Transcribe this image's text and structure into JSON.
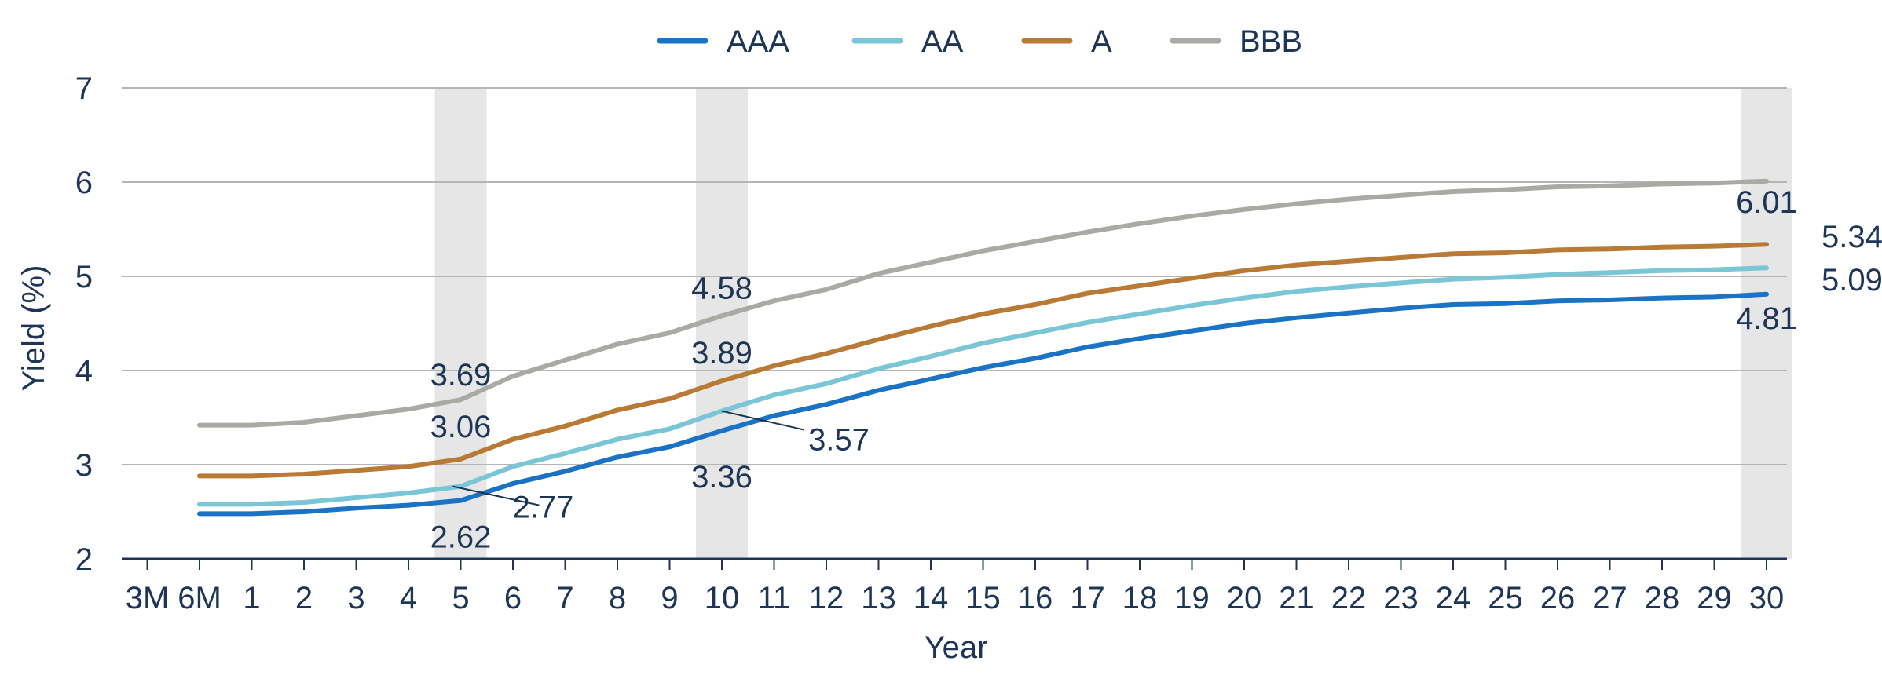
{
  "chart_data": {
    "type": "line",
    "title": "",
    "xlabel": "Year",
    "ylabel": "Yield (%)",
    "ylim": [
      2,
      7
    ],
    "yticks": [
      "2",
      "3",
      "4",
      "5",
      "6",
      "7"
    ],
    "categories": [
      "3M",
      "6M",
      "1",
      "2",
      "3",
      "4",
      "5",
      "6",
      "7",
      "8",
      "9",
      "10",
      "11",
      "12",
      "13",
      "14",
      "15",
      "16",
      "17",
      "18",
      "19",
      "20",
      "21",
      "22",
      "23",
      "24",
      "25",
      "26",
      "27",
      "28",
      "29",
      "30"
    ],
    "grid": true,
    "legend_position": "top-center",
    "highlighted_categories": [
      "5",
      "10",
      "30"
    ],
    "series": [
      {
        "name": "AAA",
        "color": "#1a73c4",
        "values": [
          null,
          2.48,
          2.48,
          2.5,
          2.54,
          2.57,
          2.62,
          2.8,
          2.93,
          3.08,
          3.19,
          3.36,
          3.52,
          3.64,
          3.79,
          3.91,
          4.03,
          4.13,
          4.25,
          4.34,
          4.42,
          4.5,
          4.56,
          4.61,
          4.66,
          4.7,
          4.71,
          4.74,
          4.75,
          4.77,
          4.78,
          4.81
        ]
      },
      {
        "name": "AA",
        "color": "#7ac6d6",
        "values": [
          null,
          2.58,
          2.58,
          2.6,
          2.65,
          2.7,
          2.77,
          2.98,
          3.12,
          3.27,
          3.38,
          3.57,
          3.74,
          3.86,
          4.02,
          4.15,
          4.29,
          4.4,
          4.51,
          4.6,
          4.69,
          4.77,
          4.84,
          4.89,
          4.93,
          4.97,
          4.99,
          5.02,
          5.04,
          5.06,
          5.07,
          5.09
        ]
      },
      {
        "name": "A",
        "color": "#b87a34",
        "values": [
          null,
          2.88,
          2.88,
          2.9,
          2.94,
          2.98,
          3.06,
          3.27,
          3.41,
          3.58,
          3.7,
          3.89,
          4.05,
          4.18,
          4.33,
          4.47,
          4.6,
          4.7,
          4.82,
          4.9,
          4.98,
          5.06,
          5.12,
          5.16,
          5.2,
          5.24,
          5.25,
          5.28,
          5.29,
          5.31,
          5.32,
          5.34
        ]
      },
      {
        "name": "BBB",
        "color": "#aaaaa5",
        "values": [
          null,
          3.42,
          3.42,
          3.45,
          3.52,
          3.59,
          3.69,
          3.94,
          4.11,
          4.28,
          4.4,
          4.58,
          4.74,
          4.86,
          5.03,
          5.15,
          5.27,
          5.37,
          5.47,
          5.56,
          5.64,
          5.71,
          5.77,
          5.82,
          5.86,
          5.9,
          5.92,
          5.95,
          5.96,
          5.98,
          5.99,
          6.01
        ]
      }
    ],
    "data_labels": [
      {
        "text": "3.69"
      },
      {
        "text": "3.06"
      },
      {
        "text": "2.77"
      },
      {
        "text": "2.62"
      },
      {
        "text": "4.58"
      },
      {
        "text": "3.89"
      },
      {
        "text": "3.57"
      },
      {
        "text": "3.36"
      },
      {
        "text": "6.01"
      },
      {
        "text": "5.34"
      },
      {
        "text": "5.09"
      },
      {
        "text": "4.81"
      }
    ],
    "axis_color": "#1d3557",
    "gridline_color": "#b5b5b5",
    "highlight_color": "#e6e6e6"
  }
}
